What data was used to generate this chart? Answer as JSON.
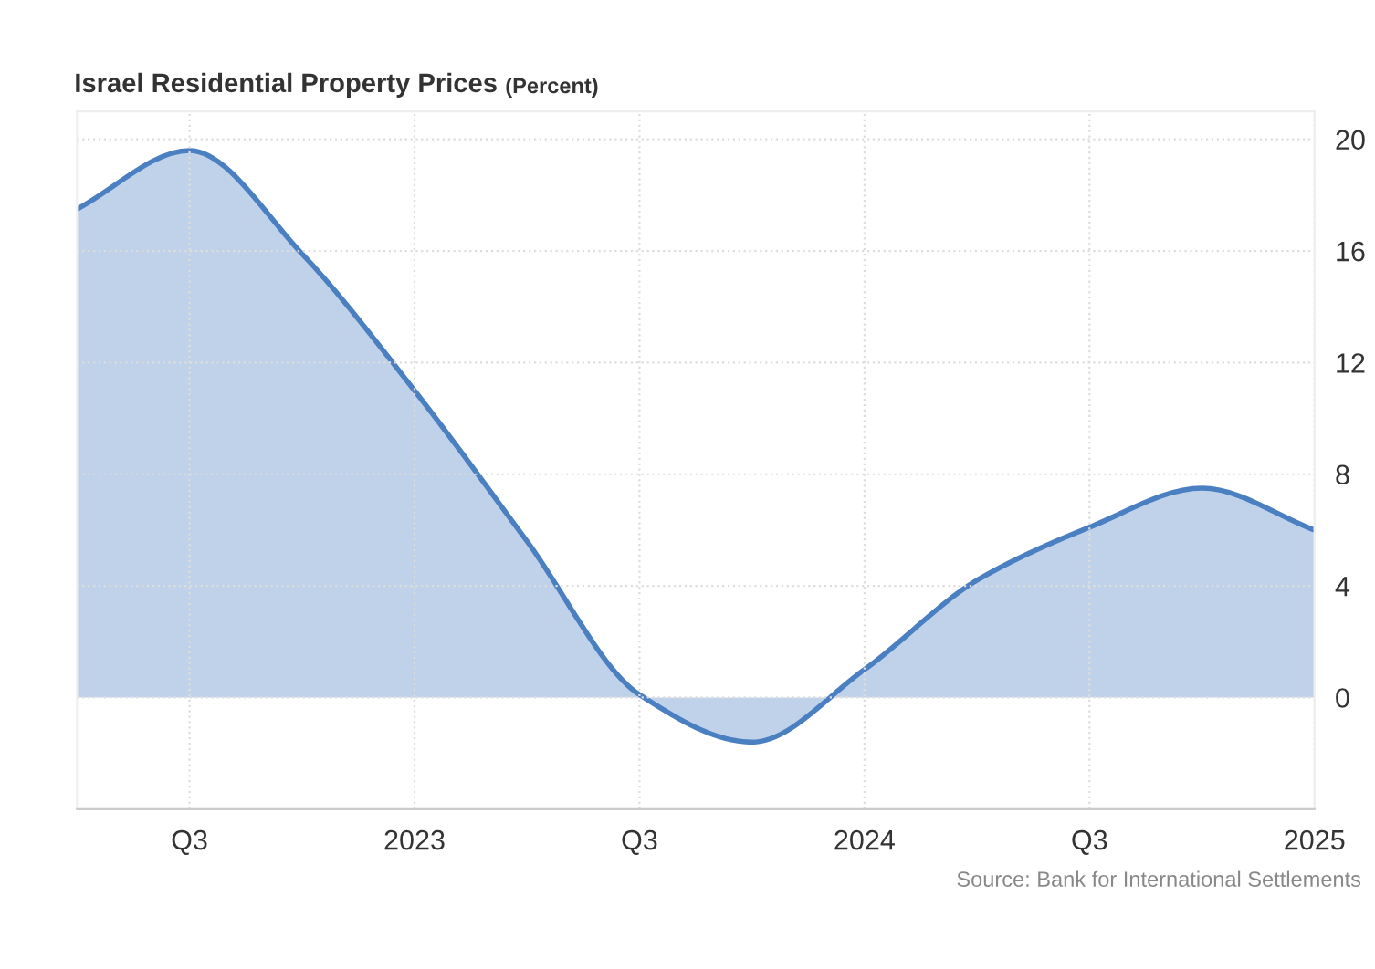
{
  "chart_data": {
    "type": "area",
    "title": "Israel Residential Property Prices",
    "subtitle": "(Percent)",
    "categories": [
      null,
      "Q3",
      null,
      "2023",
      null,
      "Q3",
      null,
      "2024",
      null,
      "Q3",
      null,
      "2025"
    ],
    "series": [
      {
        "color": "#4a7fc1",
        "values": [
          17.5,
          19.6,
          15.9,
          11.0,
          5.6,
          0.1,
          -1.6,
          1.0,
          4.2,
          6.1,
          7.5,
          6.0
        ]
      }
    ],
    "ylim": [
      -4,
      21
    ],
    "yticks": [
      0,
      4,
      8,
      12,
      16,
      20
    ],
    "grid": true,
    "legend": false,
    "marker": "none",
    "line_style": "solid",
    "annotations": [
      "Source: Bank for International Settlements"
    ]
  }
}
